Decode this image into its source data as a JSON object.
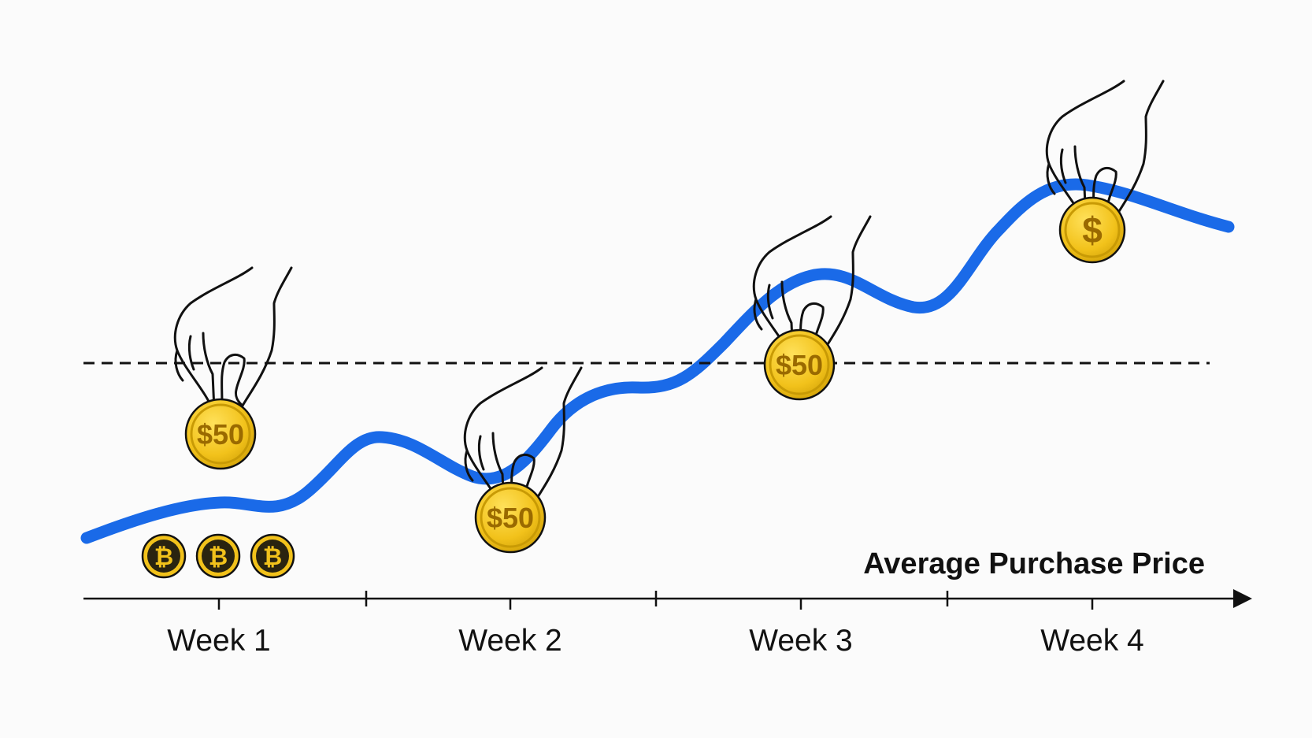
{
  "axis": {
    "title": "Average Purchase Price",
    "week_labels": [
      "Week 1",
      "Week 2",
      "Week 3",
      "Week 4"
    ]
  },
  "coins": {
    "week1": "$50",
    "week2": "$50",
    "week3": "$50",
    "week4": "$"
  },
  "crypto_coin_symbol": "₿",
  "icons": [
    "hand-icon",
    "dollar-coin-icon",
    "bitcoin-coin-icon"
  ],
  "colors": {
    "price_line": "#1a6ae8",
    "coin_gold": "#f2c21b",
    "coin_rim": "#c89a05",
    "coin_text": "#9a6a00",
    "bitcoin_dark": "#2a2410",
    "ink": "#111111"
  }
}
